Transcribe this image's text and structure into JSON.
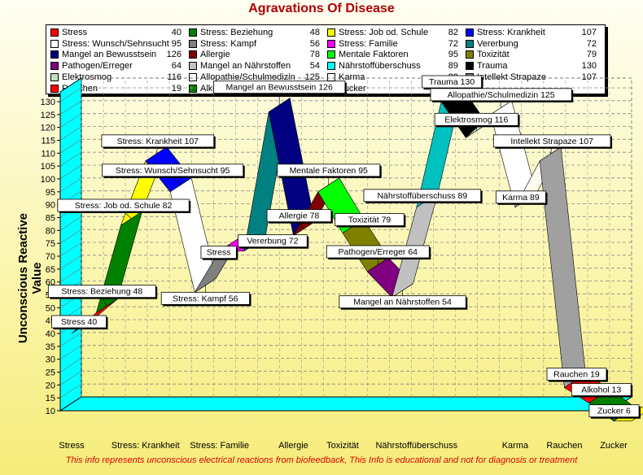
{
  "window": {
    "title": "Agravations Of Disease"
  },
  "chart_data": {
    "type": "line",
    "title": "Agravations Of Disease",
    "ylabel": "Unconscious Reactive Value",
    "xlabel": "",
    "ylim": [
      10,
      130
    ],
    "y_ticks": [
      10,
      15,
      20,
      25,
      30,
      35,
      40,
      45,
      50,
      55,
      60,
      65,
      70,
      75,
      80,
      85,
      90,
      95,
      100,
      105,
      110,
      115,
      120,
      125,
      130
    ],
    "grid": true,
    "legend_position": "top",
    "x_tick_labels": [
      "Stress",
      "Stress: Krankheit",
      "Stress: Familie",
      "Allergie",
      "Toxizität",
      "Nährstoffüberschuss",
      "Karma",
      "Rauchen",
      "Zucker"
    ],
    "points": [
      {
        "label": "Stress",
        "value": 40,
        "color": "#ff0000"
      },
      {
        "label": "Stress: Beziehung",
        "value": 48,
        "color": "#008000"
      },
      {
        "label": "Stress: Job od. Schule",
        "value": 82,
        "color": "#ffff00"
      },
      {
        "label": "Stress: Krankheit",
        "value": 107,
        "color": "#0000ff"
      },
      {
        "label": "Stress: Wunsch/Sehnsucht",
        "value": 95,
        "color": "#ffffff"
      },
      {
        "label": "Stress: Kampf",
        "value": 56,
        "color": "#808080"
      },
      {
        "label": "Stress: Familie",
        "value": 72,
        "color": "#ff00ff"
      },
      {
        "label": "Vererbung",
        "value": 72,
        "color": "#008080"
      },
      {
        "label": "Mangel an Bewusstsein",
        "value": 126,
        "color": "#000080"
      },
      {
        "label": "Allergie",
        "value": 78,
        "color": "#800000"
      },
      {
        "label": "Mentale Faktoren",
        "value": 95,
        "color": "#00ff00"
      },
      {
        "label": "Toxizität",
        "value": 79,
        "color": "#808000"
      },
      {
        "label": "Pathogen/Erreger",
        "value": 64,
        "color": "#800080"
      },
      {
        "label": "Mangel an Nährstoffen",
        "value": 54,
        "color": "#c0c0c0"
      },
      {
        "label": "Nährstoffüberschuss",
        "value": 89,
        "color": "#00c0c0"
      },
      {
        "label": "Trauma",
        "value": 130,
        "color": "#000000"
      },
      {
        "label": "Elektrosmog",
        "value": 116,
        "color": "#c0e0c0"
      },
      {
        "label": "Allopathie/Schulmedizin",
        "value": 125,
        "color": "#ffffff"
      },
      {
        "label": "Karma",
        "value": 89,
        "color": "#fff8ee"
      },
      {
        "label": "Intellekt Strapaze",
        "value": 107,
        "color": "#a0a0a0"
      },
      {
        "label": "Rauchen",
        "value": 19,
        "color": "#ff0000"
      },
      {
        "label": "Alkohol",
        "value": 13,
        "color": "#008000"
      },
      {
        "label": "Zucker",
        "value": 6,
        "color": "#ffff00"
      }
    ],
    "legend": [
      {
        "name": "Stress",
        "value": "40",
        "color": "#ff0000"
      },
      {
        "name": "Stress: Wunsch/Sehnsucht",
        "value": "95",
        "color": "#ffffff"
      },
      {
        "name": "Mangel an Bewusstsein",
        "value": "126",
        "color": "#000080"
      },
      {
        "name": "Pathogen/Erreger",
        "value": "64",
        "color": "#800080"
      },
      {
        "name": "Elektrosmog",
        "value": "116",
        "color": "#c0e0c0"
      },
      {
        "name": "Rauchen",
        "value": "19",
        "color": "#ff0000"
      },
      {
        "name": "Stress: Beziehung",
        "value": "48",
        "color": "#008000"
      },
      {
        "name": "Stress: Kampf",
        "value": "56",
        "color": "#808080"
      },
      {
        "name": "Allergie",
        "value": "78",
        "color": "#800000"
      },
      {
        "name": "Mangel an Nährstoffen",
        "value": "54",
        "color": "#c0c0c0"
      },
      {
        "name": "Allopathie/Schulmedizin",
        "value": "125",
        "color": "#ffffff"
      },
      {
        "name": "Alkohol",
        "value": "13",
        "color": "#008000"
      },
      {
        "name": "Stress: Job od. Schule",
        "value": "82",
        "color": "#ffff00"
      },
      {
        "name": "Stress: Familie",
        "value": "72",
        "color": "#ff00ff"
      },
      {
        "name": "Mentale Faktoren",
        "value": "95",
        "color": "#00ff00"
      },
      {
        "name": "Nährstoffüberschuss",
        "value": "89",
        "color": "#00ffff"
      },
      {
        "name": "Karma",
        "value": "89",
        "color": "#ffffff"
      },
      {
        "name": "Zucker",
        "value": "6",
        "color": "#ffff00"
      },
      {
        "name": "Stress: Krankheit",
        "value": "107",
        "color": "#0000ff"
      },
      {
        "name": "Vererbung",
        "value": "72",
        "color": "#008080"
      },
      {
        "name": "Toxizität",
        "value": "79",
        "color": "#808000"
      },
      {
        "name": "Trauma",
        "value": "130",
        "color": "#000000"
      },
      {
        "name": "Intellekt Strapaze",
        "value": "107",
        "color": "#808080"
      }
    ],
    "annotations": [
      {
        "text": "Stress  40",
        "for": "Stress"
      },
      {
        "text": "Stress: Beziehung  48",
        "for": "Stress: Beziehung"
      },
      {
        "text": "Stress: Job od. Schule  82",
        "for": "Stress: Job od. Schule"
      },
      {
        "text": "Stress: Krankheit  107",
        "for": "Stress: Krankheit"
      },
      {
        "text": "Stress: Wunsch/Sehnsucht  95",
        "for": "Stress: Wunsch/Sehnsucht"
      },
      {
        "text": "Stress: Kampf  56",
        "for": "Stress: Kampf"
      },
      {
        "text": "Stress",
        "for": "Stress: Familie"
      },
      {
        "text": "Vererbung  72",
        "for": "Vererbung"
      },
      {
        "text": "Mangel an Bewusstsein  126",
        "for": "Mangel an Bewusstsein"
      },
      {
        "text": "Allergie  78",
        "for": "Allergie"
      },
      {
        "text": "Mentale Faktoren  95",
        "for": "Mentale Faktoren"
      },
      {
        "text": "Toxizität  79",
        "for": "Toxizität"
      },
      {
        "text": "Pathogen/Erreger  64",
        "for": "Pathogen/Erreger"
      },
      {
        "text": "Mangel an Nährstoffen  54",
        "for": "Mangel an Nährstoffen"
      },
      {
        "text": "Nährstoffüberschuss  89",
        "for": "Nährstoffüberschuss"
      },
      {
        "text": "Trauma  130",
        "for": "Trauma"
      },
      {
        "text": "Elektrosmog  116",
        "for": "Elektrosmog"
      },
      {
        "text": "Allopathie/Schulmedizin  125",
        "for": "Allopathie/Schulmedizin"
      },
      {
        "text": "Karma  89",
        "for": "Karma"
      },
      {
        "text": "Intellekt Strapaze  107",
        "for": "Intellekt Strapaze"
      },
      {
        "text": "Rauchen  19",
        "for": "Rauchen"
      },
      {
        "text": "Alkohol  13",
        "for": "Alkohol"
      },
      {
        "text": "Zucker  6",
        "for": "Zucker"
      }
    ]
  },
  "footer": {
    "note": "This info represents unconscious electrical reactions from biofeedback, This Info is educational and  not  for diagnosis or treatment"
  },
  "colors": {
    "wall": "#00ffff",
    "title": "#b00000",
    "footer": "#e00000"
  }
}
